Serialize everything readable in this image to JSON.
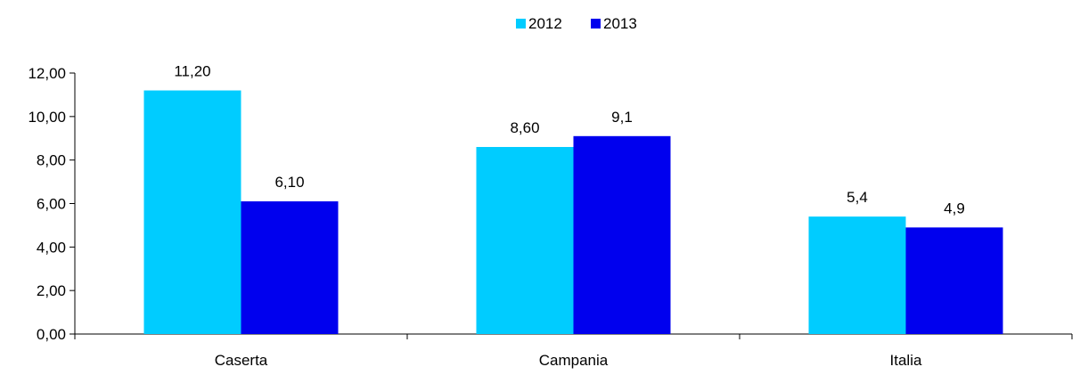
{
  "chart_data": {
    "type": "bar",
    "categories": [
      "Caserta",
      "Campania",
      "Italia"
    ],
    "series": [
      {
        "name": "2012",
        "values": [
          11.2,
          8.6,
          5.4
        ],
        "labels": [
          "11,20",
          "8,60",
          "5,4"
        ],
        "color": "#00CCFF"
      },
      {
        "name": "2013",
        "values": [
          6.1,
          9.1,
          4.9
        ],
        "labels": [
          "6,10",
          "9,1",
          "4,9"
        ],
        "color": "#0000EE"
      }
    ],
    "ylim": [
      0,
      12
    ],
    "yticks": [
      0,
      2,
      4,
      6,
      8,
      10,
      12
    ],
    "ytick_labels": [
      "0,00",
      "2,00",
      "4,00",
      "6,00",
      "8,00",
      "10,00",
      "12,00"
    ],
    "legend": "top-center",
    "grid": false
  }
}
